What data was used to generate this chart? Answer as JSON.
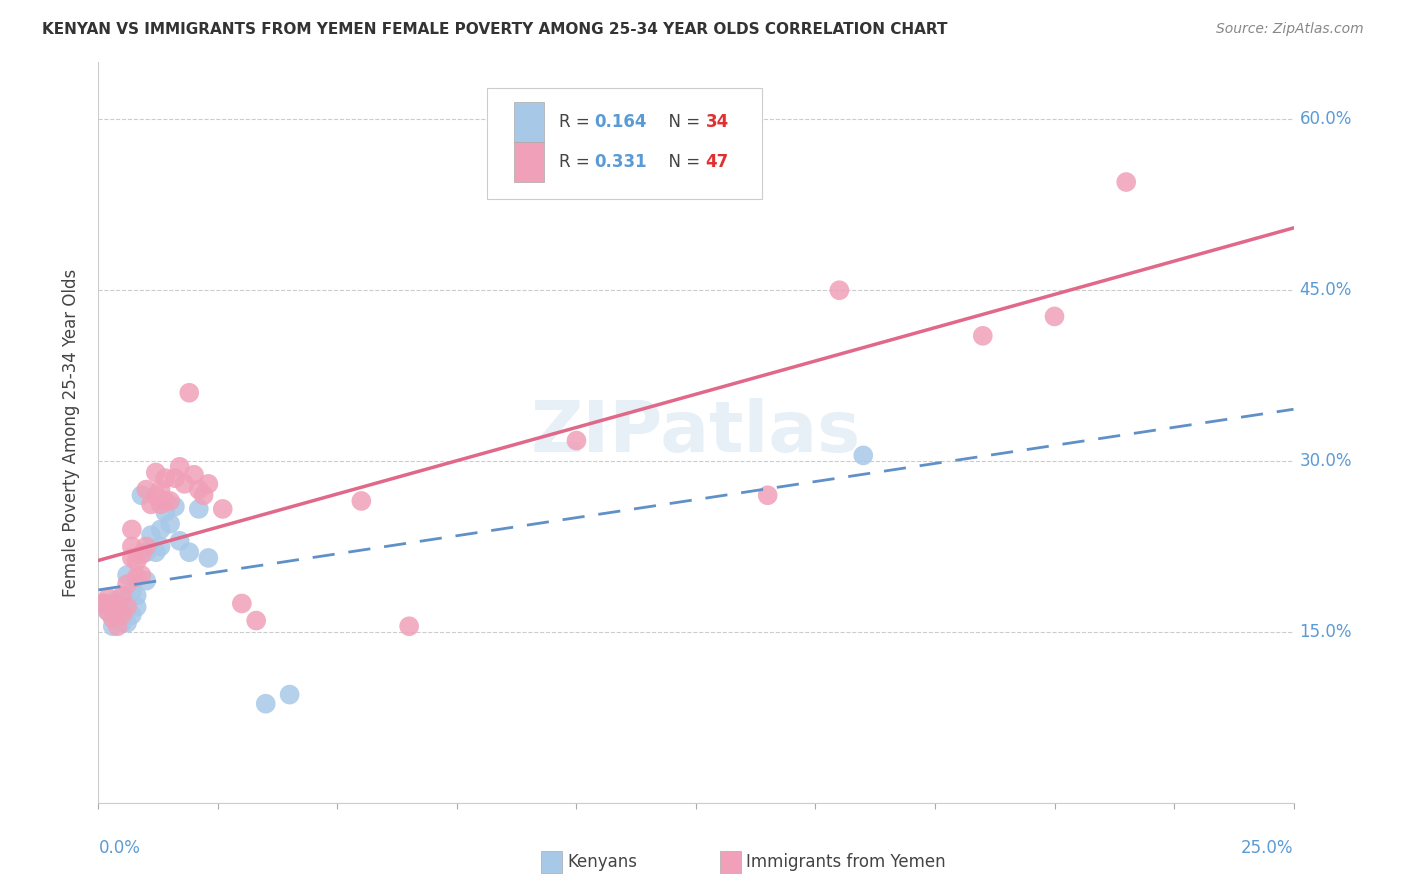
{
  "title": "KENYAN VS IMMIGRANTS FROM YEMEN FEMALE POVERTY AMONG 25-34 YEAR OLDS CORRELATION CHART",
  "source": "Source: ZipAtlas.com",
  "ylabel": "Female Poverty Among 25-34 Year Olds",
  "xlim": [
    0.0,
    0.25
  ],
  "ylim": [
    0.0,
    0.65
  ],
  "color_kenyan": "#A8C8E8",
  "color_yemen": "#F0A0B8",
  "color_kenyan_line": "#6090C8",
  "color_yemen_line": "#E06888",
  "background_color": "#FFFFFF",
  "kenyan_x": [
    0.001,
    0.002,
    0.002,
    0.003,
    0.003,
    0.003,
    0.004,
    0.004,
    0.005,
    0.005,
    0.005,
    0.006,
    0.006,
    0.007,
    0.007,
    0.008,
    0.008,
    0.009,
    0.01,
    0.01,
    0.011,
    0.012,
    0.013,
    0.013,
    0.014,
    0.015,
    0.016,
    0.017,
    0.019,
    0.021,
    0.023,
    0.035,
    0.04,
    0.16
  ],
  "kenyan_y": [
    0.175,
    0.168,
    0.175,
    0.155,
    0.162,
    0.17,
    0.168,
    0.178,
    0.158,
    0.165,
    0.172,
    0.158,
    0.2,
    0.165,
    0.185,
    0.172,
    0.182,
    0.27,
    0.195,
    0.22,
    0.235,
    0.22,
    0.225,
    0.24,
    0.255,
    0.245,
    0.26,
    0.23,
    0.22,
    0.258,
    0.215,
    0.087,
    0.095,
    0.305
  ],
  "yemen_x": [
    0.001,
    0.002,
    0.002,
    0.003,
    0.003,
    0.004,
    0.004,
    0.005,
    0.005,
    0.006,
    0.006,
    0.007,
    0.007,
    0.007,
    0.008,
    0.008,
    0.009,
    0.009,
    0.01,
    0.01,
    0.011,
    0.012,
    0.012,
    0.013,
    0.013,
    0.014,
    0.014,
    0.015,
    0.016,
    0.017,
    0.018,
    0.019,
    0.02,
    0.021,
    0.022,
    0.023,
    0.026,
    0.03,
    0.033,
    0.055,
    0.065,
    0.1,
    0.14,
    0.155,
    0.185,
    0.2,
    0.215
  ],
  "yemen_y": [
    0.175,
    0.168,
    0.18,
    0.162,
    0.172,
    0.155,
    0.175,
    0.165,
    0.182,
    0.172,
    0.192,
    0.215,
    0.225,
    0.24,
    0.198,
    0.212,
    0.2,
    0.218,
    0.225,
    0.275,
    0.262,
    0.27,
    0.29,
    0.262,
    0.275,
    0.265,
    0.285,
    0.265,
    0.285,
    0.295,
    0.28,
    0.36,
    0.288,
    0.275,
    0.27,
    0.28,
    0.258,
    0.175,
    0.16,
    0.265,
    0.155,
    0.318,
    0.27,
    0.45,
    0.41,
    0.427,
    0.545
  ]
}
